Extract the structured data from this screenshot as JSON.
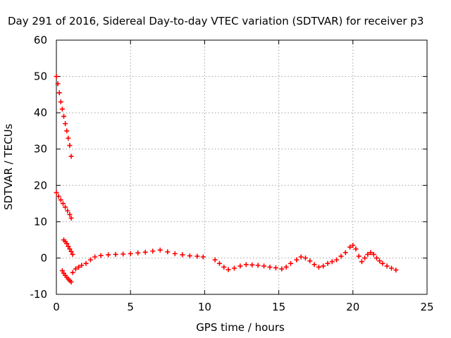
{
  "chart_data": {
    "type": "scatter",
    "title": "Day 291 of 2016, Sidereal Day-to-day VTEC variation (SDTVAR) for receiver p3",
    "xlabel": "GPS time / hours",
    "ylabel": "SDTVAR / TECUs",
    "xlim": [
      0,
      25
    ],
    "ylim": [
      -10,
      60
    ],
    "xticks": [
      "0",
      "5",
      "10",
      "15",
      "20",
      "25"
    ],
    "yticks": [
      "-10",
      "0",
      "10",
      "20",
      "30",
      "40",
      "50",
      "60"
    ],
    "grid": true,
    "marker": "plus",
    "color": "#ff0000",
    "series": [
      {
        "x": [
          0.0,
          0.1,
          0.2,
          0.3,
          0.4,
          0.5,
          0.6,
          0.7,
          0.8,
          0.9,
          1.0
        ],
        "y": [
          50,
          48,
          45.5,
          43,
          41,
          39,
          37,
          35,
          33,
          31,
          28
        ]
      },
      {
        "x": [
          0.0,
          0.15,
          0.3,
          0.45,
          0.6,
          0.75,
          0.9,
          1.0
        ],
        "y": [
          18,
          17,
          16,
          15,
          14,
          13,
          12,
          11
        ]
      },
      {
        "x": [
          0.5,
          0.6,
          0.7,
          0.8,
          0.9,
          1.0,
          1.1
        ],
        "y": [
          5,
          4.5,
          4,
          3.2,
          2.5,
          1.8,
          1
        ]
      },
      {
        "x": [
          0.4,
          0.5,
          0.6,
          0.7,
          0.8,
          0.9,
          1.0
        ],
        "y": [
          -3.5,
          -4.2,
          -4.8,
          -5.3,
          -5.8,
          -6.2,
          -6.6
        ]
      },
      {
        "x": [
          1.1,
          1.3,
          1.5,
          1.7,
          2.0,
          2.3,
          2.6,
          3.0,
          3.5,
          4.0,
          4.5,
          5.0,
          5.5,
          6.0,
          6.5,
          7.0,
          7.5,
          8.0,
          8.5,
          9.0,
          9.5,
          9.9
        ],
        "y": [
          -4,
          -3,
          -2.5,
          -2,
          -1.5,
          -0.5,
          0.3,
          0.7,
          0.9,
          1.0,
          1.1,
          1.2,
          1.4,
          1.6,
          1.9,
          2.2,
          1.7,
          1.2,
          0.9,
          0.6,
          0.5,
          0.3
        ]
      },
      {
        "x": [
          10.7,
          11.0,
          11.3,
          11.6,
          12.0,
          12.4,
          12.8,
          13.2,
          13.6,
          14.0,
          14.4,
          14.8,
          15.2,
          15.5,
          15.8,
          16.2,
          16.5,
          16.8,
          17.1,
          17.4,
          17.7,
          18.0,
          18.3,
          18.6,
          18.9,
          19.2,
          19.5,
          19.8,
          20.0,
          20.2,
          20.4,
          20.6,
          20.8,
          21.0,
          21.2,
          21.4,
          21.6,
          21.8,
          22.0,
          22.3,
          22.6,
          22.9
        ],
        "y": [
          -0.5,
          -1.5,
          -2.5,
          -3.2,
          -2.8,
          -2.2,
          -1.8,
          -1.9,
          -2.0,
          -2.2,
          -2.5,
          -2.7,
          -3.0,
          -2.5,
          -1.5,
          -0.5,
          0.3,
          0.0,
          -0.8,
          -1.8,
          -2.5,
          -2.2,
          -1.5,
          -1.0,
          -0.5,
          0.5,
          1.5,
          3.0,
          3.5,
          2.5,
          0.5,
          -1.0,
          0.0,
          1.0,
          1.5,
          1.0,
          0.0,
          -0.8,
          -1.5,
          -2.2,
          -2.8,
          -3.3
        ]
      }
    ]
  }
}
